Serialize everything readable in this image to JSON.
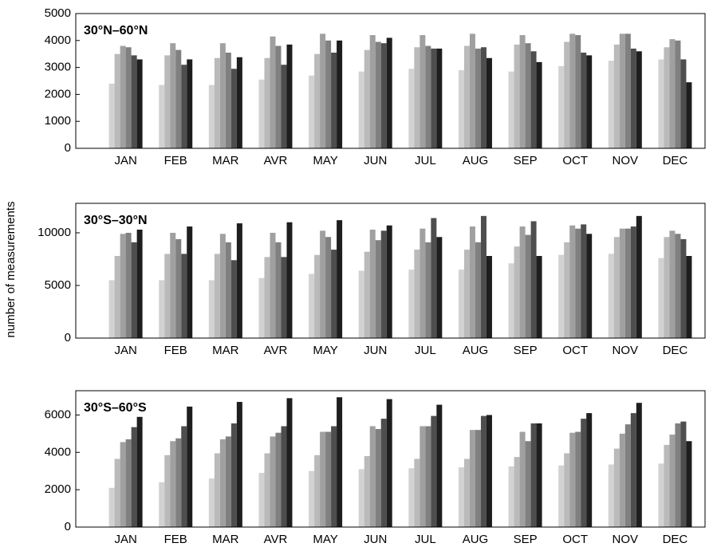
{
  "chart_data": [
    {
      "type": "bar",
      "title": "30°N–60°N",
      "categories": [
        "JAN",
        "FEB",
        "MAR",
        "AVR",
        "MAY",
        "JUN",
        "JUL",
        "AUG",
        "SEP",
        "OCT",
        "NOV",
        "DEC"
      ],
      "series": [
        {
          "color": "#d2d2d2",
          "values": [
            2400,
            2350,
            2350,
            2550,
            2700,
            2850,
            2950,
            2900,
            2850,
            3050,
            3250,
            3300
          ]
        },
        {
          "color": "#bababa",
          "values": [
            3500,
            3450,
            3350,
            3350,
            3500,
            3650,
            3750,
            3800,
            3850,
            3950,
            3850,
            3750
          ]
        },
        {
          "color": "#a0a0a0",
          "values": [
            3800,
            3900,
            3900,
            4150,
            4250,
            4200,
            4200,
            4250,
            4200,
            4250,
            4250,
            4050
          ]
        },
        {
          "color": "#808080",
          "values": [
            3750,
            3650,
            3550,
            3800,
            4000,
            3950,
            3800,
            3700,
            3900,
            4200,
            4250,
            4000
          ]
        },
        {
          "color": "#4e4e4e",
          "values": [
            3450,
            3100,
            2950,
            3100,
            3550,
            3900,
            3700,
            3750,
            3600,
            3550,
            3700,
            3300
          ]
        },
        {
          "color": "#1e1e1e",
          "values": [
            3300,
            3300,
            3380,
            3850,
            4000,
            4100,
            3700,
            3350,
            3200,
            3450,
            3600,
            2450
          ]
        }
      ],
      "ylim": [
        0,
        5000
      ],
      "yticks": [
        0,
        1000,
        2000,
        3000,
        4000,
        5000
      ],
      "grid": false
    },
    {
      "type": "bar",
      "title": "30°S–30°N",
      "ylabel": "number of measurements",
      "categories": [
        "JAN",
        "FEB",
        "MAR",
        "AVR",
        "MAY",
        "JUN",
        "JUL",
        "AUG",
        "SEP",
        "OCT",
        "NOV",
        "DEC"
      ],
      "series": [
        {
          "color": "#d2d2d2",
          "values": [
            5500,
            5500,
            5500,
            5700,
            6100,
            6400,
            6500,
            6500,
            7100,
            7900,
            8000,
            7600
          ]
        },
        {
          "color": "#bababa",
          "values": [
            7800,
            8000,
            8000,
            7700,
            7900,
            8200,
            8400,
            8400,
            8700,
            9100,
            9600,
            9600
          ]
        },
        {
          "color": "#a0a0a0",
          "values": [
            9900,
            10000,
            9900,
            10000,
            10200,
            10300,
            10400,
            10600,
            10600,
            10700,
            10400,
            10200
          ]
        },
        {
          "color": "#808080",
          "values": [
            10000,
            9400,
            9100,
            9100,
            9600,
            9300,
            9100,
            9100,
            9800,
            10400,
            10400,
            9900
          ]
        },
        {
          "color": "#4e4e4e",
          "values": [
            9100,
            8000,
            7400,
            7700,
            8400,
            10200,
            11400,
            11600,
            11100,
            10800,
            10600,
            9400
          ]
        },
        {
          "color": "#1e1e1e",
          "values": [
            10300,
            10600,
            10900,
            11000,
            11200,
            10700,
            9600,
            7800,
            7800,
            9900,
            11600,
            7800
          ]
        }
      ],
      "ylim": [
        0,
        12800
      ],
      "yticks": [
        0,
        5000,
        10000
      ],
      "grid": false
    },
    {
      "type": "bar",
      "title": "30°S–60°S",
      "categories": [
        "JAN",
        "FEB",
        "MAR",
        "AVR",
        "MAY",
        "JUN",
        "JUL",
        "AUG",
        "SEP",
        "OCT",
        "NOV",
        "DEC"
      ],
      "series": [
        {
          "color": "#d2d2d2",
          "values": [
            2100,
            2400,
            2600,
            2900,
            3000,
            3100,
            3150,
            3200,
            3250,
            3300,
            3350,
            3400
          ]
        },
        {
          "color": "#bababa",
          "values": [
            3650,
            3850,
            3950,
            3950,
            3850,
            3800,
            3650,
            3650,
            3750,
            3950,
            4200,
            4400
          ]
        },
        {
          "color": "#a0a0a0",
          "values": [
            4550,
            4600,
            4700,
            4850,
            5100,
            5400,
            5400,
            5200,
            5100,
            5050,
            5000,
            4950
          ]
        },
        {
          "color": "#808080",
          "values": [
            4700,
            4750,
            4850,
            5050,
            5100,
            5250,
            5400,
            5200,
            4600,
            5100,
            5500,
            5550
          ]
        },
        {
          "color": "#4e4e4e",
          "values": [
            5350,
            5400,
            5550,
            5400,
            5400,
            5800,
            5950,
            5950,
            5550,
            5800,
            6100,
            5650
          ]
        },
        {
          "color": "#1e1e1e",
          "values": [
            5900,
            6450,
            6700,
            6900,
            6950,
            6850,
            6550,
            6000,
            5550,
            6100,
            6650,
            4600
          ]
        }
      ],
      "ylim": [
        0,
        7300
      ],
      "yticks": [
        0,
        2000,
        4000,
        6000
      ],
      "grid": false
    }
  ]
}
